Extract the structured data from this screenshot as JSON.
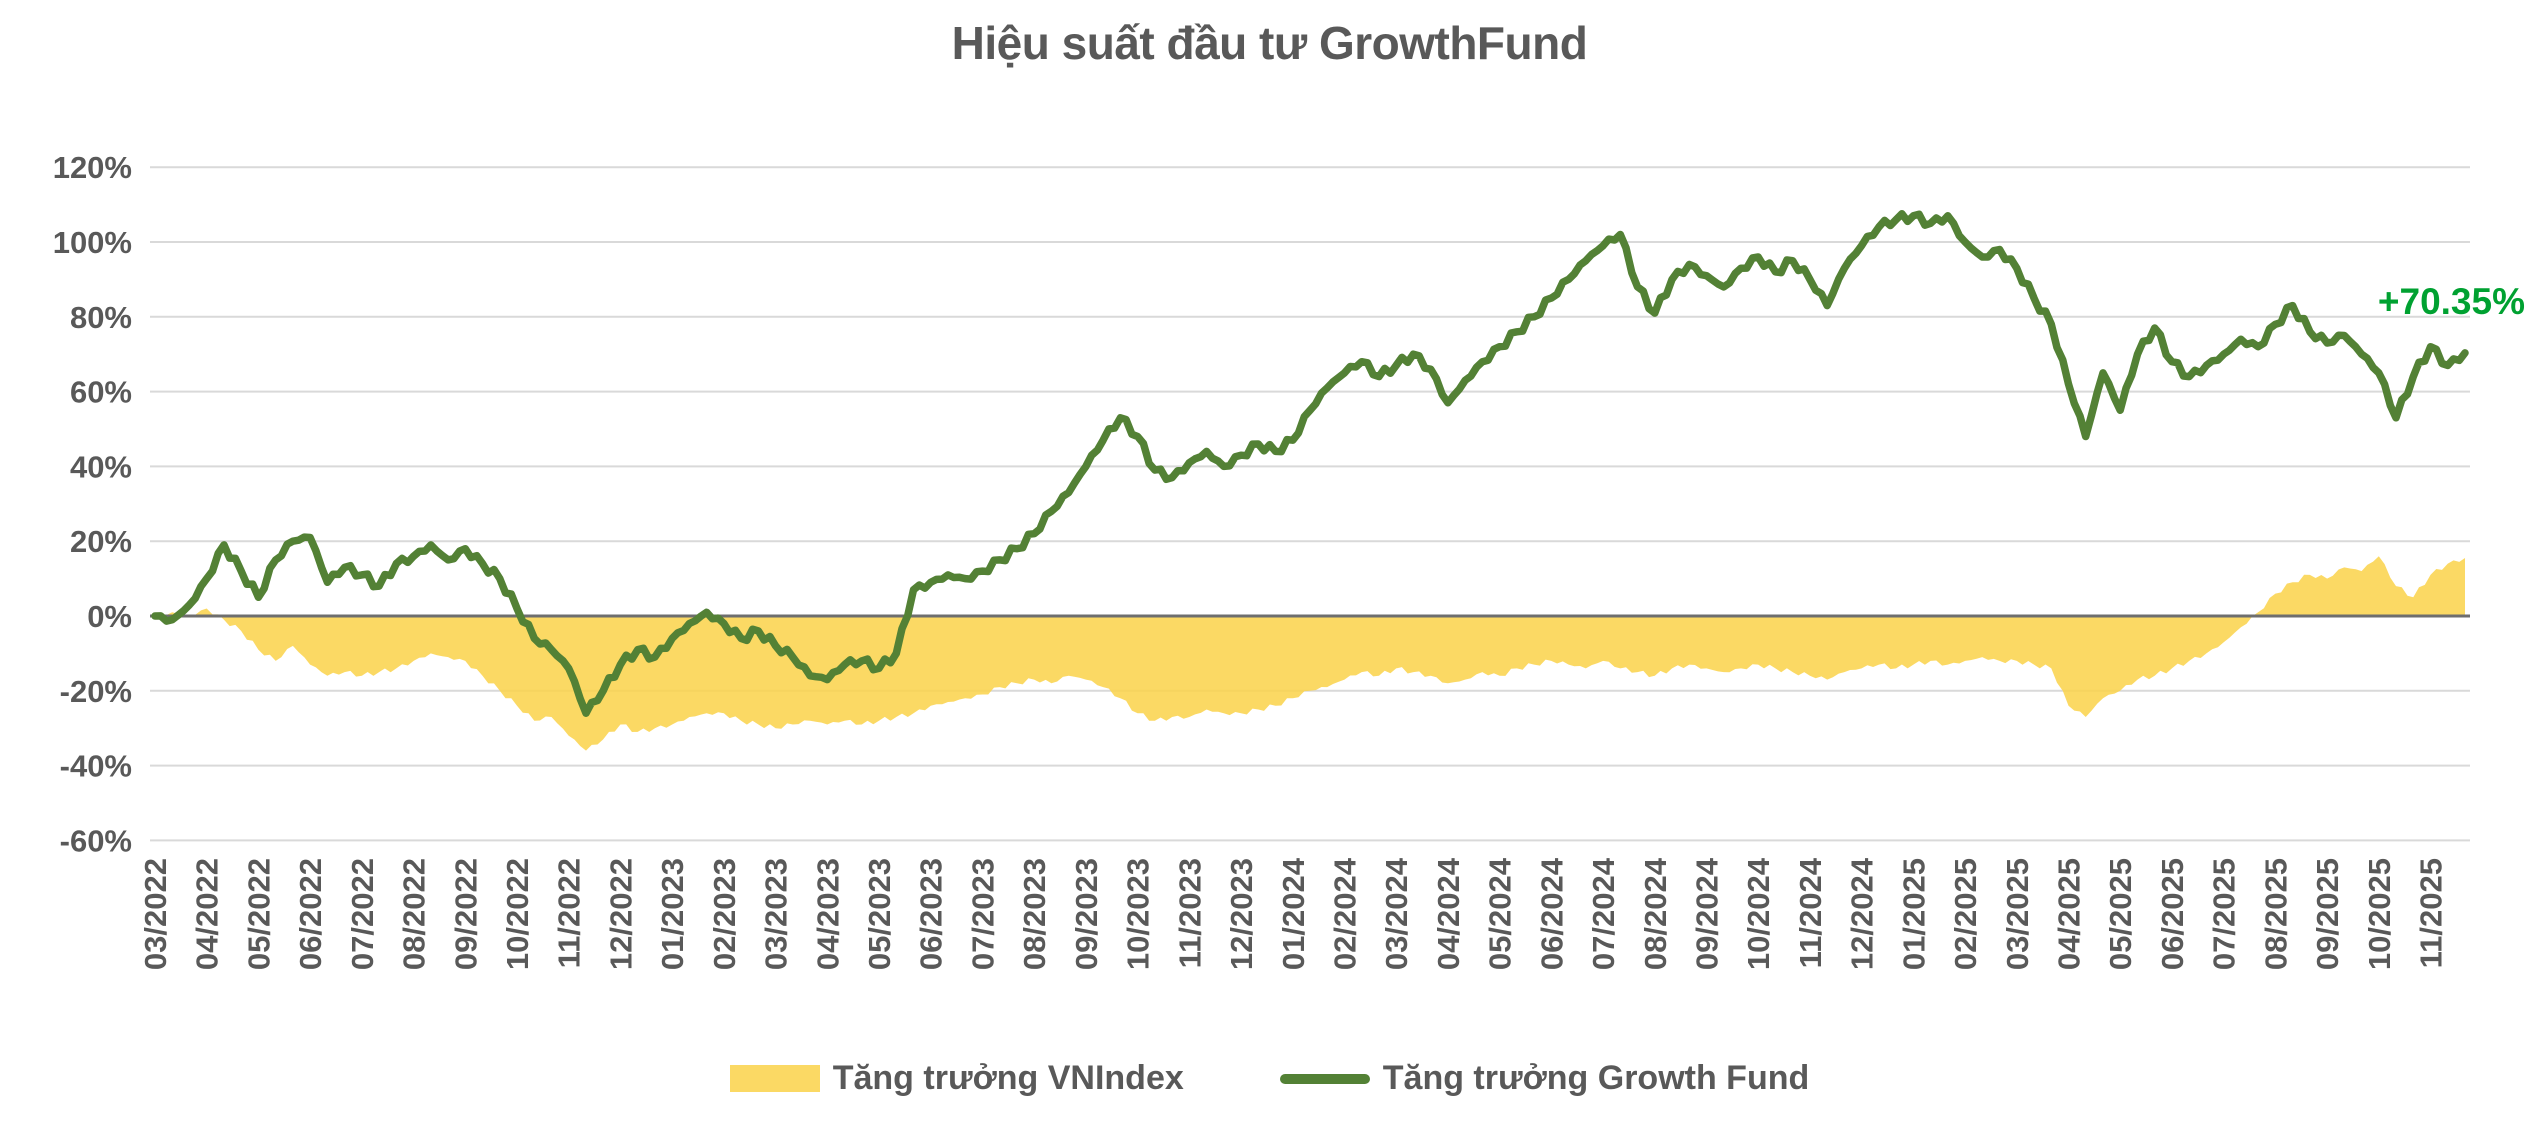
{
  "chart": {
    "title": "Hiệu suất đầu tư GrowthFund",
    "title_color": "#595959",
    "annotation": {
      "text": "+70.35%",
      "color": "#00A131"
    },
    "colors": {
      "gridline": "#D9D9D9",
      "zero_axis": "#6E6E6E",
      "axis_label": "#595959",
      "vnindex_fill": "#FAD249",
      "growthfund_line": "#538135"
    }
  },
  "chart_data": {
    "type": "area",
    "title": "Hiệu suất đầu tư GrowthFund",
    "xlabel": "",
    "ylabel": "",
    "ylim": [
      -60,
      120
    ],
    "y_ticks": [
      120,
      100,
      80,
      60,
      40,
      20,
      0,
      -20,
      -40,
      -60
    ],
    "y_tick_suffix": "%",
    "grid": "horizontal",
    "legend_position": "bottom",
    "points_per_month": 3,
    "x_tick_labels": [
      "03/2022",
      "04/2022",
      "05/2022",
      "06/2022",
      "07/2022",
      "08/2022",
      "09/2022",
      "10/2022",
      "11/2022",
      "12/2022",
      "01/2023",
      "02/2023",
      "03/2023",
      "04/2023",
      "05/2023",
      "06/2023",
      "07/2023",
      "08/2023",
      "09/2023",
      "10/2023",
      "11/2023",
      "12/2023",
      "01/2024",
      "02/2024",
      "03/2024",
      "04/2024",
      "05/2024",
      "06/2024",
      "07/2024",
      "08/2024",
      "09/2024",
      "10/2024",
      "11/2024",
      "12/2024",
      "01/2025",
      "02/2025",
      "03/2025",
      "04/2025",
      "05/2025",
      "06/2025",
      "07/2025",
      "08/2025",
      "09/2025",
      "10/2025",
      "11/2025"
    ],
    "end_label": "+70.35%",
    "final_growthfund_value": 70.35,
    "series": [
      {
        "name": "Tăng trưởng VNIndex",
        "type": "area",
        "color": "#FBD964",
        "values": [
          0,
          1,
          0,
          2,
          -1,
          -4,
          -9,
          -12,
          -8,
          -13,
          -16,
          -15,
          -16,
          -15,
          -14,
          -12,
          -10,
          -11,
          -12,
          -16,
          -20,
          -24,
          -28,
          -27,
          -32,
          -36,
          -33,
          -29,
          -31,
          -30,
          -29,
          -27,
          -26,
          -26,
          -28,
          -29,
          -30,
          -29,
          -28,
          -29,
          -28,
          -29,
          -28,
          -27,
          -26,
          -24,
          -23,
          -22,
          -21,
          -19,
          -18,
          -17,
          -18,
          -16,
          -17,
          -19,
          -22,
          -26,
          -28,
          -27,
          -27,
          -25,
          -26,
          -26,
          -25,
          -24,
          -22,
          -20,
          -19,
          -17,
          -15,
          -16,
          -14,
          -15,
          -16,
          -18,
          -17,
          -15,
          -16,
          -14,
          -13,
          -12,
          -13,
          -14,
          -12,
          -14,
          -15,
          -16,
          -14,
          -13,
          -14,
          -15,
          -14,
          -13,
          -14,
          -15,
          -16,
          -17,
          -15,
          -14,
          -13,
          -14,
          -13,
          -12,
          -13,
          -12,
          -11,
          -12,
          -12,
          -13,
          -14,
          -24,
          -27,
          -22,
          -20,
          -17,
          -16,
          -14,
          -12,
          -10,
          -7,
          -3,
          1,
          6,
          9,
          11,
          10,
          13,
          12,
          16,
          8,
          5,
          11,
          14,
          15.5
        ]
      },
      {
        "name": "Tăng trưởng Growth Fund",
        "type": "line",
        "color": "#538135",
        "values": [
          0,
          -1,
          3,
          10,
          19,
          12,
          5,
          15,
          20,
          21,
          9,
          13,
          11,
          8,
          14,
          16,
          19,
          15,
          18,
          14,
          10,
          2,
          -6,
          -9,
          -14,
          -26,
          -20,
          -13,
          -9,
          -11,
          -6,
          -2,
          1,
          -2,
          -6,
          -4,
          -8,
          -11,
          -16,
          -17,
          -13,
          -12,
          -14,
          -10,
          7,
          9,
          11,
          10,
          12,
          15,
          18,
          22,
          28,
          33,
          40,
          47,
          53,
          48,
          39,
          37,
          41,
          44,
          40,
          43,
          46,
          44,
          47,
          55,
          61,
          65,
          68,
          64,
          67,
          70,
          66,
          57,
          63,
          68,
          72,
          76,
          80,
          85,
          90,
          95,
          99,
          102,
          88,
          81,
          90,
          94,
          91,
          88,
          93,
          96,
          92,
          95,
          90,
          83,
          93,
          99,
          104,
          106,
          107,
          105,
          107,
          100,
          96,
          98,
          93,
          85,
          78,
          62,
          48,
          65,
          55,
          70,
          77,
          68,
          64,
          67,
          70,
          74,
          72,
          78,
          83,
          76,
          73,
          75,
          70,
          65,
          53,
          64,
          72,
          67,
          70.35
        ]
      }
    ]
  }
}
